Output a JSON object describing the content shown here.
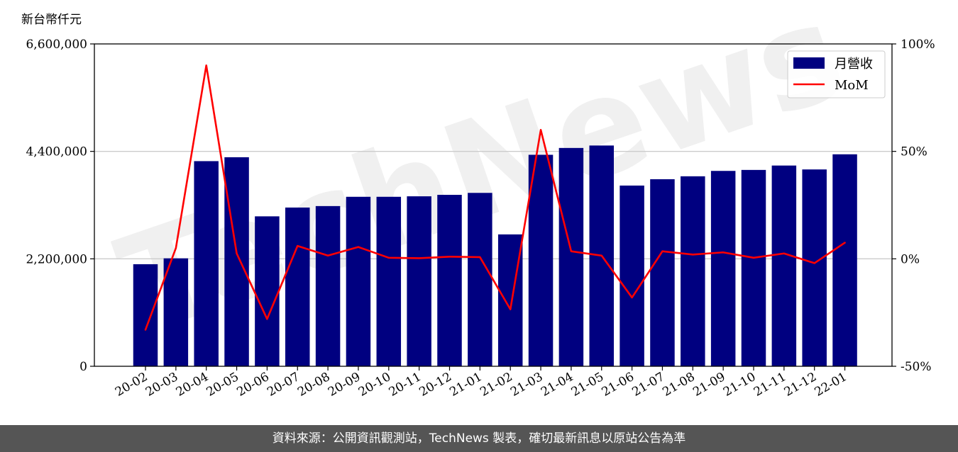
{
  "chart_data": {
    "type": "bar",
    "unit_label": "新台幣仟元",
    "categories": [
      "20-02",
      "20-03",
      "20-04",
      "20-05",
      "20-06",
      "20-07",
      "20-08",
      "20-09",
      "20-10",
      "20-11",
      "20-12",
      "21-01",
      "21-02",
      "21-03",
      "21-04",
      "21-05",
      "21-06",
      "21-07",
      "21-08",
      "21-09",
      "21-10",
      "21-11",
      "21-12",
      "22-01"
    ],
    "series": [
      {
        "name": "月營收",
        "type": "bar",
        "axis": "left",
        "color": "#000080",
        "values": [
          2090000,
          2210000,
          4200000,
          4280000,
          3070000,
          3250000,
          3280000,
          3470000,
          3470000,
          3480000,
          3510000,
          3550000,
          2700000,
          4330000,
          4470000,
          4520000,
          3700000,
          3830000,
          3890000,
          4000000,
          4020000,
          4110000,
          4030000,
          4340000
        ]
      },
      {
        "name": "MoM",
        "type": "line",
        "axis": "right",
        "color": "#ff0000",
        "values": [
          -33,
          5,
          90,
          2.5,
          -28,
          6,
          1.5,
          5.5,
          0.5,
          0.3,
          1,
          0.8,
          -23.5,
          60,
          3.5,
          1.5,
          -18,
          3.5,
          2,
          3,
          0.5,
          2.5,
          -2,
          7.5
        ]
      }
    ],
    "y_left": {
      "ylim": [
        0,
        6600000
      ],
      "ticks": [
        0,
        2200000,
        4400000,
        6600000
      ],
      "tick_labels": [
        "0",
        "2,200,000",
        "4,400,000",
        "6,600,000"
      ]
    },
    "y_right": {
      "ylim": [
        -50,
        100
      ],
      "ticks": [
        -50,
        0,
        50,
        100
      ],
      "tick_labels": [
        "-50%",
        "0%",
        "50%",
        "100%"
      ]
    },
    "grid": "horizontal",
    "legend_position": "top-right"
  },
  "watermark": "TechNews",
  "footer": {
    "text": "資料來源：公開資訊觀測站，TechNews 製表，確切最新訊息以原站公告為準"
  }
}
